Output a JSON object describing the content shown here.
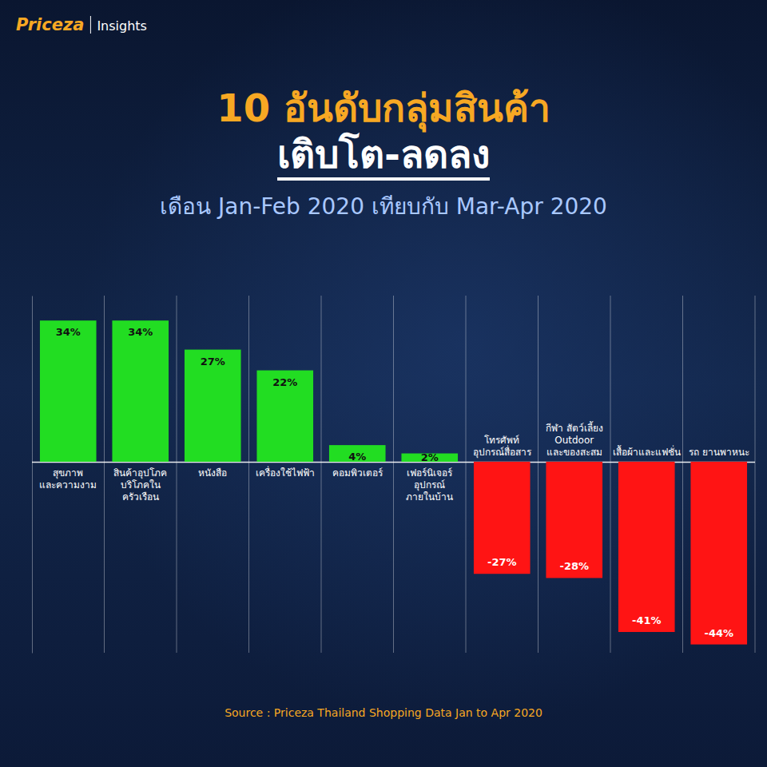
{
  "header": {
    "brand": "Priceza",
    "label": "Insights"
  },
  "chart_data": {
    "type": "bar",
    "title": [
      "10 อันดับกลุ่มสินค้า",
      "เติบโต-ลดลง"
    ],
    "subtitle": "เดือน Jan-Feb 2020 เทียบกับ Mar-Apr 2020",
    "categories": [
      "สุขภาพ และความงาม",
      "สินค้าอุปโภค บริโภคใน ครัวเรือน",
      "หนังสือ",
      "เครื่องใช้ไฟฟ้า",
      "คอมพิวเตอร์",
      "เฟอร์นิเจอร์ อุปกรณ์ ภายในบ้าน",
      "โทรศัพท์ อุปกรณ์สื่อสาร",
      "กีฬา สัตว์เลี้ยง Outdoor และของสะสม",
      "เสื้อผ้าและแฟชั่น",
      "รถ ยานพาหนะ"
    ],
    "values": [
      34,
      34,
      27,
      22,
      4,
      2,
      -27,
      -28,
      -41,
      -44
    ],
    "value_labels": [
      "34%",
      "34%",
      "27%",
      "22%",
      "4%",
      "2%",
      "-27%",
      "-28%",
      "-41%",
      "-44%"
    ],
    "colors": [
      "#22dd22",
      "#22dd22",
      "#22dd22",
      "#22dd22",
      "#22dd22",
      "#22dd22",
      "#ff1414",
      "#ff1414",
      "#ff1414",
      "#ff1414"
    ],
    "ylim": [
      -46,
      40
    ],
    "yticks": [
      0
    ],
    "data_labels": true,
    "tick_labels": "x",
    "source": "Source : Priceza Thailand Shopping Data Jan to Apr 2020"
  }
}
